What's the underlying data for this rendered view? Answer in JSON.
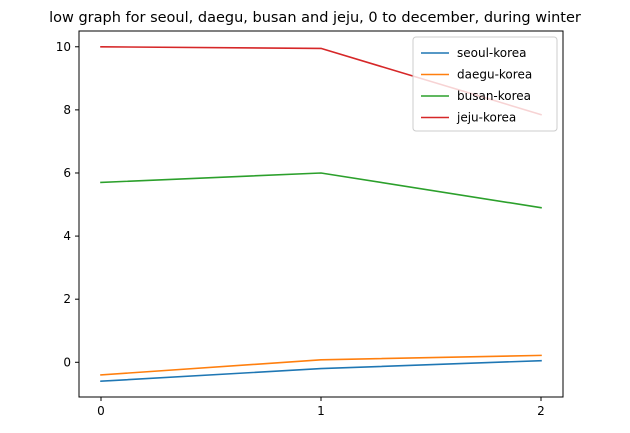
{
  "chart_data": {
    "type": "line",
    "title": "low graph for seoul, daegu, busan and jeju, 0 to december, during winter",
    "xlabel": "",
    "ylabel": "",
    "x": [
      0,
      1,
      2
    ],
    "xticks": [
      "0",
      "1",
      "2"
    ],
    "yticks": [
      "0",
      "2",
      "4",
      "6",
      "8",
      "10"
    ],
    "xlim": [
      -0.1,
      2.1
    ],
    "ylim": [
      -1.1,
      10.5
    ],
    "grid": false,
    "legend_position": "top-right",
    "series": [
      {
        "name": "seoul-korea",
        "color": "#1f77b4",
        "values": [
          -0.6,
          -0.2,
          0.05
        ]
      },
      {
        "name": "daegu-korea",
        "color": "#ff7f0e",
        "values": [
          -0.4,
          0.08,
          0.22
        ]
      },
      {
        "name": "busan-korea",
        "color": "#2ca02c",
        "values": [
          5.7,
          6.0,
          4.9
        ]
      },
      {
        "name": "jeju-korea",
        "color": "#d62728",
        "values": [
          10.0,
          9.95,
          7.85
        ]
      }
    ]
  }
}
